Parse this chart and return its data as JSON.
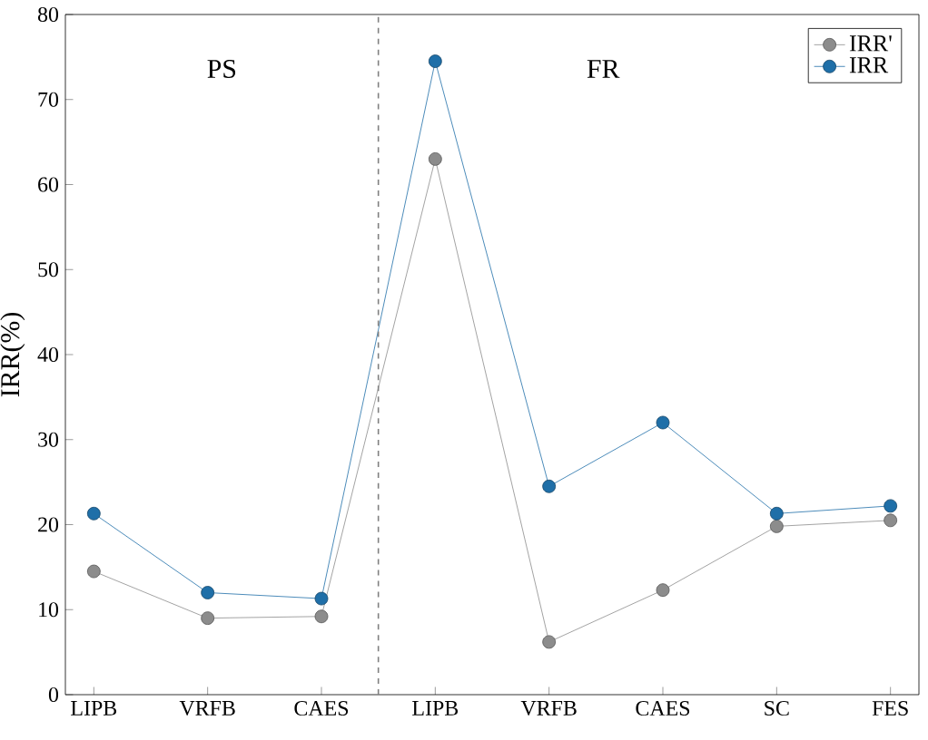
{
  "chart_data": {
    "type": "line",
    "ylabel": "IRR(%)",
    "categories": [
      "LIPB",
      "VRFB",
      "CAES",
      "LIPB",
      "VRFB",
      "CAES",
      "SC",
      "FES"
    ],
    "series": [
      {
        "name": "IRR'",
        "color": "#8c8c8c",
        "values": [
          14.5,
          9,
          9.2,
          63,
          6.2,
          12.3,
          19.8,
          20.5
        ]
      },
      {
        "name": "IRR",
        "color": "#1f6fa8",
        "values": [
          21.3,
          12,
          11.3,
          74.5,
          24.5,
          32,
          21.3,
          22.2
        ]
      }
    ],
    "ylim": [
      0,
      80
    ],
    "yticks": [
      0,
      10,
      20,
      30,
      40,
      50,
      60,
      70,
      80
    ],
    "annotations": [
      "PS",
      "FR"
    ],
    "legend": "top right",
    "marker": "circle",
    "line_style": "solid",
    "grid": false
  }
}
